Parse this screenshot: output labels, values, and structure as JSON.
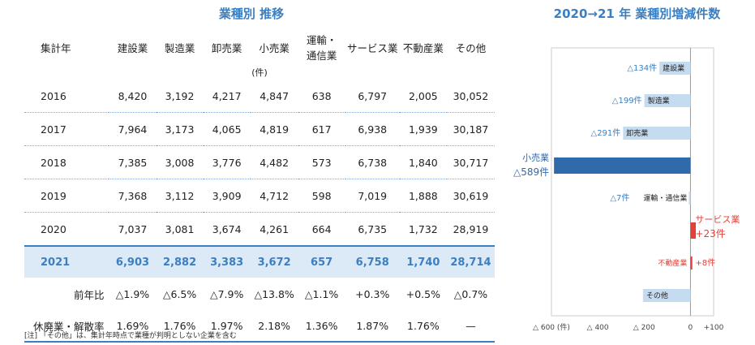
{
  "left_title": "業種別 推移",
  "table": {
    "header_year": "集計年",
    "columns": [
      "建設業",
      "製造業",
      "卸売業",
      "小売業",
      "運輸・\n通信業",
      "サービス業",
      "不動産業",
      "その他"
    ],
    "unit": "(件)",
    "rows": [
      {
        "year": "2016",
        "values": [
          "8,420",
          "3,192",
          "4,217",
          "4,847",
          "638",
          "6,797",
          "2,005",
          "30,052"
        ]
      },
      {
        "year": "2017",
        "values": [
          "7,964",
          "3,173",
          "4,065",
          "4,819",
          "617",
          "6,938",
          "1,939",
          "30,187"
        ]
      },
      {
        "year": "2018",
        "values": [
          "7,385",
          "3,008",
          "3,776",
          "4,482",
          "573",
          "6,738",
          "1,840",
          "30,717"
        ]
      },
      {
        "year": "2019",
        "values": [
          "7,368",
          "3,112",
          "3,909",
          "4,712",
          "598",
          "7,019",
          "1,888",
          "30,619"
        ]
      },
      {
        "year": "2020",
        "values": [
          "7,037",
          "3,081",
          "3,674",
          "4,261",
          "664",
          "6,735",
          "1,732",
          "28,919"
        ]
      }
    ],
    "highlight": {
      "year": "2021",
      "values": [
        "6,903",
        "2,882",
        "3,383",
        "3,672",
        "657",
        "6,758",
        "1,740",
        "28,714"
      ]
    },
    "ratio": {
      "label": "前年比",
      "values": [
        "△1.9%",
        "△6.5%",
        "△7.9%",
        "△13.8%",
        "△1.1%",
        "+0.3%",
        "+0.5%",
        "△0.7%"
      ]
    },
    "rate": {
      "label": "休廃業・解散率",
      "values": [
        "1.69%",
        "1.76%",
        "1.97%",
        "2.18%",
        "1.36%",
        "1.87%",
        "1.76%",
        "—"
      ]
    }
  },
  "note": "[注] 「その他」は、集計年時点で業種が判明としない企業を含む",
  "chart_title": "2020→21 年 業種別増減件数",
  "colors": {
    "accent": "#3b7fc2",
    "bar_light": "#c5dcf0",
    "bar_dark": "#2f6aab",
    "positive": "#e0413a"
  },
  "chart_data": {
    "type": "bar",
    "orientation": "horizontal",
    "title": "2020→21 年 業種別増減件数",
    "categories": [
      "建設業",
      "製造業",
      "卸売業",
      "小売業",
      "運輸・通信業",
      "サービス業",
      "不動産業",
      "その他"
    ],
    "values": [
      -134,
      -199,
      -291,
      -589,
      -7,
      23,
      8,
      -205
    ],
    "value_labels": [
      "△134件",
      "△199件",
      "△291件",
      "△589件",
      "△7件",
      "+23件",
      "+8件",
      ""
    ],
    "xlim": [
      -600,
      100
    ],
    "ticks": [
      -600,
      -400,
      -200,
      0,
      100
    ],
    "tick_labels": [
      "△ 600 (件)",
      "△ 400",
      "△ 200",
      "0",
      "+100"
    ],
    "highlight": [
      "小売業",
      "サービス業"
    ],
    "grid": false
  }
}
